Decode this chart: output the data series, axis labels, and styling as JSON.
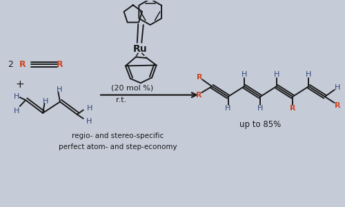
{
  "background_color": "#c5ccd8",
  "text_color_black": "#1a1a1a",
  "text_color_red": "#cc4422",
  "text_color_blue": "#334477",
  "fig_width": 5.0,
  "fig_height": 3.0,
  "dpi": 100,
  "catalyst_text": "Ru",
  "mol_pct_text": "(20 mol %)",
  "rt_text": "r.t.",
  "yield_text": "up to 85%",
  "bottom_text1": "regio- and stereo-specific",
  "bottom_text2": "perfect atom- and step-economy",
  "prefix_2": "2"
}
